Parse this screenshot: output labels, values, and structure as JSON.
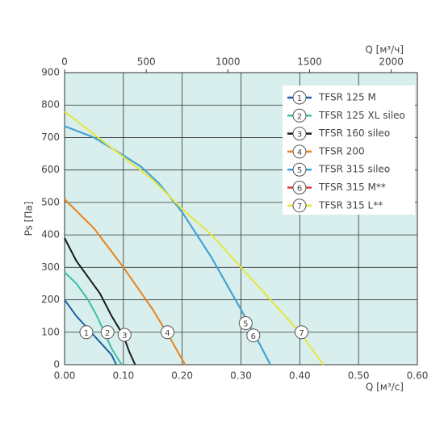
{
  "chart_data": {
    "type": "line",
    "x_label": "Q [м³/с]",
    "x2_label": "Q [м³/ч]",
    "y_label": "Ps [Па]",
    "xlim": [
      0,
      0.6
    ],
    "xticks": [
      {
        "value": 0,
        "label": "0.00"
      },
      {
        "value": 0.1,
        "label": "0.10"
      },
      {
        "value": 0.2,
        "label": "0.20"
      },
      {
        "value": 0.3,
        "label": "0.30"
      },
      {
        "value": 0.4,
        "label": "0.40"
      },
      {
        "value": 0.5,
        "label": "0.50"
      },
      {
        "value": 0.6,
        "label": "0.60"
      }
    ],
    "x2lim": [
      0,
      2160
    ],
    "x2ticks": [
      0,
      500,
      1000,
      1500,
      2000
    ],
    "ylim": [
      0,
      900
    ],
    "yticks": [
      0,
      100,
      200,
      300,
      400,
      500,
      600,
      700,
      800,
      900
    ],
    "grid": true,
    "legend": "upper right",
    "series": [
      {
        "name": "TFSR 125 M",
        "marker": "1",
        "color": "#1c5fa3",
        "x": [
          0,
          0.02,
          0.04,
          0.06,
          0.08,
          0.088
        ],
        "values": [
          200,
          150,
          110,
          70,
          30,
          0
        ],
        "label_x": 0.037,
        "label_y": 100
      },
      {
        "name": "TFSR 125 XL sileo",
        "marker": "2",
        "color": "#3dbfa6",
        "x": [
          0,
          0.02,
          0.04,
          0.055,
          0.07,
          0.08,
          0.097
        ],
        "values": [
          285,
          250,
          200,
          150,
          90,
          50,
          0
        ],
        "label_x": 0.073,
        "label_y": 100
      },
      {
        "name": "TFSR 160 sileo",
        "marker": "3",
        "color": "#1a1a1a",
        "x": [
          0,
          0.02,
          0.04,
          0.06,
          0.08,
          0.1,
          0.11,
          0.12
        ],
        "values": [
          390,
          320,
          270,
          220,
          150,
          90,
          40,
          0
        ],
        "label_x": 0.102,
        "label_y": 92
      },
      {
        "name": "TFSR 200",
        "marker": "4",
        "color": "#e8821e",
        "x": [
          0,
          0.05,
          0.1,
          0.15,
          0.18,
          0.205
        ],
        "values": [
          510,
          420,
          300,
          170,
          80,
          0
        ],
        "label_x": 0.175,
        "label_y": 100
      },
      {
        "name": "TFSR 315 M**",
        "marker": "6",
        "color": "#d93a30",
        "x": [
          0,
          0.05,
          0.1,
          0.13,
          0.16,
          0.2,
          0.25,
          0.3,
          0.33,
          0.35
        ],
        "values": [
          735,
          700,
          645,
          610,
          560,
          470,
          330,
          170,
          70,
          0
        ],
        "label_x": 0.321,
        "label_y": 90
      },
      {
        "name": "TFSR 315 sileo",
        "marker": "5",
        "color": "#3aa8dc",
        "x": [
          0,
          0.05,
          0.1,
          0.13,
          0.16,
          0.2,
          0.25,
          0.3,
          0.33,
          0.35
        ],
        "values": [
          735,
          700,
          645,
          610,
          560,
          470,
          330,
          170,
          70,
          0
        ],
        "label_x": 0.308,
        "label_y": 128
      },
      {
        "name": "TFSR 315 L**",
        "marker": "7",
        "color": "#e6e63c",
        "x": [
          0,
          0.05,
          0.1,
          0.15,
          0.2,
          0.25,
          0.3,
          0.35,
          0.4,
          0.44
        ],
        "values": [
          780,
          710,
          640,
          570,
          480,
          400,
          300,
          200,
          100,
          0
        ],
        "label_x": 0.403,
        "label_y": 100
      }
    ],
    "legend_order": [
      0,
      1,
      2,
      3,
      5,
      4,
      6
    ]
  }
}
